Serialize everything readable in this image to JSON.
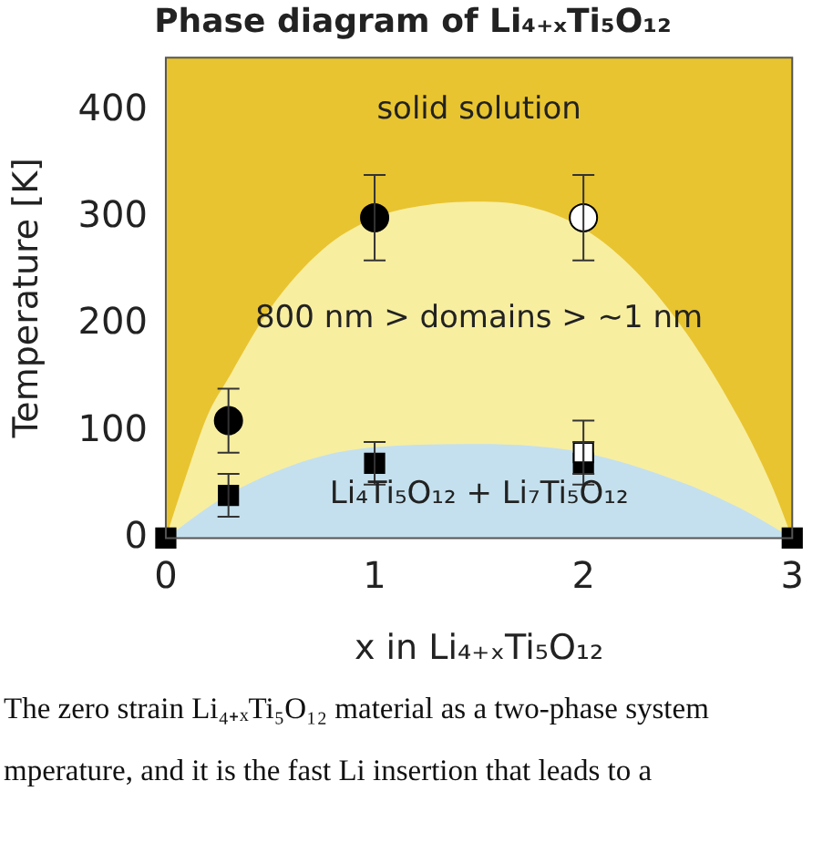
{
  "chart_data": {
    "type": "scatter",
    "title": "Phase diagram of Li₄₊ₓTi₅O₁₂",
    "xlabel": "x in Li₄₊ₓTi₅O₁₂",
    "ylabel": "Temperature [K]",
    "xlim": [
      0,
      3
    ],
    "xticks": [
      0,
      1,
      2,
      3
    ],
    "ylim": [
      0,
      450
    ],
    "yticks": [
      0,
      100,
      200,
      300,
      400
    ],
    "legend": false,
    "bands": [
      {
        "axis": "y",
        "from": 0,
        "to": 450,
        "color": "#e8c430"
      }
    ],
    "series": [
      {
        "type": "area",
        "color": "#f8eea0",
        "x": [
          0,
          0.1,
          0.2,
          0.3,
          0.5,
          0.75,
          1,
          1.25,
          1.5,
          1.75,
          2,
          2.25,
          2.5,
          2.75,
          2.9,
          3
        ],
        "values": [
          0,
          60,
          115,
          150,
          215,
          270,
          300,
          312,
          315,
          310,
          290,
          250,
          190,
          110,
          50,
          0
        ]
      },
      {
        "type": "area",
        "color": "#c4e0ee",
        "x": [
          0,
          0.25,
          0.5,
          0.75,
          1,
          1.5,
          2,
          2.5,
          2.75,
          3
        ],
        "values": [
          0,
          35,
          60,
          77,
          85,
          88,
          80,
          50,
          28,
          0
        ]
      },
      {
        "marker": "square",
        "color": "#000000",
        "x": [
          0,
          0.3,
          1,
          2,
          3
        ],
        "values": [
          0,
          40,
          70,
          70,
          0
        ],
        "errors": [
          null,
          20,
          20,
          20,
          null
        ]
      },
      {
        "marker": "square",
        "color": "#ffffff",
        "x": [
          2
        ],
        "values": [
          80
        ],
        "errors": [
          [
            60,
            110
          ]
        ]
      },
      {
        "marker": "circle",
        "color": "#000000",
        "x": [
          0.3,
          1
        ],
        "values": [
          110,
          300
        ],
        "errors": [
          30,
          40
        ]
      },
      {
        "marker": "circle",
        "color": "#ffffff",
        "x": [
          2
        ],
        "values": [
          300
        ],
        "errors": [
          [
            260,
            340
          ]
        ]
      }
    ],
    "annotations": [
      "solid solution",
      "800 nm > domains > ~1 nm",
      "Li₄Ti₅O₁₂ + Li₇Ti₅O₁₂",
      "The zero strain Li₄₊ₓTi₅O₁₂ material as a two-phase system",
      "mperature, and it is the fast Li insertion that leads to a"
    ]
  }
}
